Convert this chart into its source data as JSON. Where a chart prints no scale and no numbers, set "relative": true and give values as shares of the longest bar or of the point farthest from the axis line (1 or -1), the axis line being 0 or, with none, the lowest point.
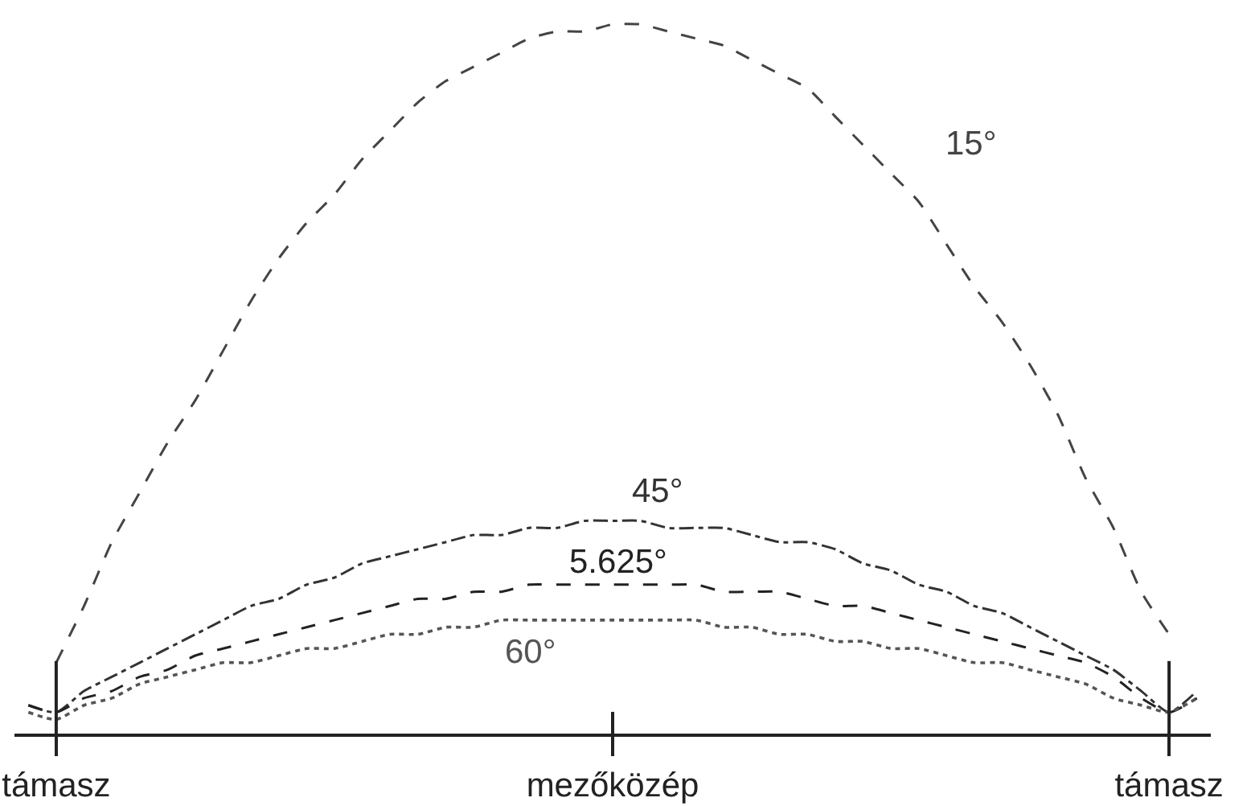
{
  "chart_data": {
    "type": "line",
    "relative": true,
    "categories": [
      null,
      "támasz",
      null,
      null,
      null,
      null,
      null,
      null,
      null,
      null,
      null,
      null,
      null,
      null,
      null,
      null,
      null,
      null,
      null,
      null,
      null,
      "mezőközép",
      null,
      null,
      null,
      null,
      null,
      null,
      null,
      null,
      null,
      null,
      null,
      null,
      null,
      null,
      null,
      null,
      null,
      null,
      null,
      "támasz",
      null
    ],
    "tick_labels": "x",
    "legend": false,
    "marker": "none",
    "series": [
      {
        "name": "15°",
        "color": "#444444",
        "line_style": "dashed",
        "values": [
          null,
          0.1,
          0.18,
          0.27,
          0.34,
          0.41,
          0.47,
          0.54,
          0.61,
          0.67,
          0.72,
          0.76,
          0.81,
          0.85,
          0.89,
          0.92,
          0.94,
          0.96,
          0.98,
          0.99,
          0.99,
          1.0,
          1.0,
          0.99,
          0.98,
          0.97,
          0.95,
          0.93,
          0.91,
          0.87,
          0.83,
          0.79,
          0.75,
          0.69,
          0.63,
          0.58,
          0.52,
          0.45,
          0.36,
          0.29,
          0.2,
          0.14,
          null
        ]
      },
      {
        "name": "45°",
        "color": "#333333",
        "line_style": "dashdot",
        "values": [
          0.04,
          0.03,
          0.06,
          0.08,
          0.1,
          0.12,
          0.14,
          0.16,
          0.18,
          0.19,
          0.21,
          0.22,
          0.24,
          0.25,
          0.26,
          0.27,
          0.28,
          0.28,
          0.29,
          0.29,
          0.3,
          0.3,
          0.3,
          0.29,
          0.29,
          0.29,
          0.28,
          0.27,
          0.27,
          0.26,
          0.24,
          0.23,
          0.21,
          0.2,
          0.18,
          0.17,
          0.15,
          0.13,
          0.11,
          0.09,
          0.06,
          0.03,
          0.06
        ]
      },
      {
        "name": "5.625°",
        "color": "#222222",
        "line_style": "dashed",
        "values": [
          0.04,
          0.03,
          0.05,
          0.06,
          0.08,
          0.09,
          0.11,
          0.12,
          0.13,
          0.14,
          0.15,
          0.16,
          0.17,
          0.18,
          0.19,
          0.19,
          0.2,
          0.2,
          0.21,
          0.21,
          0.21,
          0.21,
          0.21,
          0.21,
          0.21,
          0.2,
          0.2,
          0.2,
          0.19,
          0.18,
          0.18,
          0.17,
          0.16,
          0.15,
          0.14,
          0.13,
          0.12,
          0.11,
          0.1,
          0.08,
          0.05,
          0.03,
          0.05
        ]
      },
      {
        "name": "60°",
        "color": "#555555",
        "line_style": "dotted",
        "values": [
          0.03,
          0.02,
          0.04,
          0.05,
          0.07,
          0.08,
          0.09,
          0.1,
          0.1,
          0.11,
          0.12,
          0.12,
          0.13,
          0.14,
          0.14,
          0.15,
          0.15,
          0.16,
          0.16,
          0.16,
          0.16,
          0.16,
          0.16,
          0.16,
          0.16,
          0.15,
          0.15,
          0.14,
          0.14,
          0.13,
          0.13,
          0.12,
          0.12,
          0.11,
          0.1,
          0.1,
          0.09,
          0.08,
          0.07,
          0.05,
          0.04,
          0.03,
          0.05
        ]
      }
    ]
  }
}
